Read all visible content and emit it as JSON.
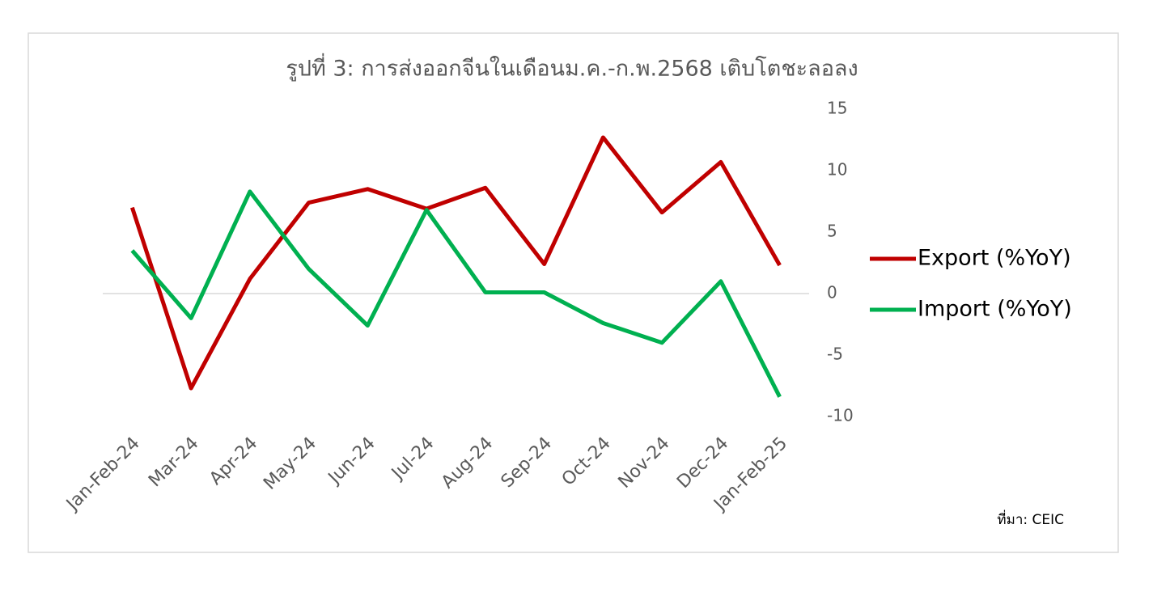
{
  "chart_data": {
    "type": "line",
    "title": "รูปที่ 3: การส่งออกจีนในเดือนม.ค.-ก.พ.2568 เติบโตชะลอลง",
    "categories": [
      "Jan-Feb-24",
      "Mar-24",
      "Apr-24",
      "May-24",
      "Jun-24",
      "Jul-24",
      "Aug-24",
      "Sep-24",
      "Oct-24",
      "Nov-24",
      "Dec-24",
      "Jan-Feb-25"
    ],
    "series": [
      {
        "name": "Export (%YoY)",
        "color": "#c00000",
        "values": [
          7.0,
          -7.7,
          1.2,
          7.4,
          8.5,
          6.9,
          8.6,
          2.4,
          12.7,
          6.6,
          10.7,
          2.3
        ]
      },
      {
        "name": "Import (%YoY)",
        "color": "#00b050",
        "values": [
          3.5,
          -2.0,
          8.3,
          2.0,
          -2.6,
          6.8,
          0.1,
          0.1,
          -2.4,
          -4.0,
          1.0,
          -8.4
        ]
      }
    ],
    "ylim": [
      -10,
      15
    ],
    "yticks": [
      -10,
      -5,
      0,
      5,
      10,
      15
    ],
    "legend": "right",
    "source": "ที่มา:  CEIC"
  }
}
